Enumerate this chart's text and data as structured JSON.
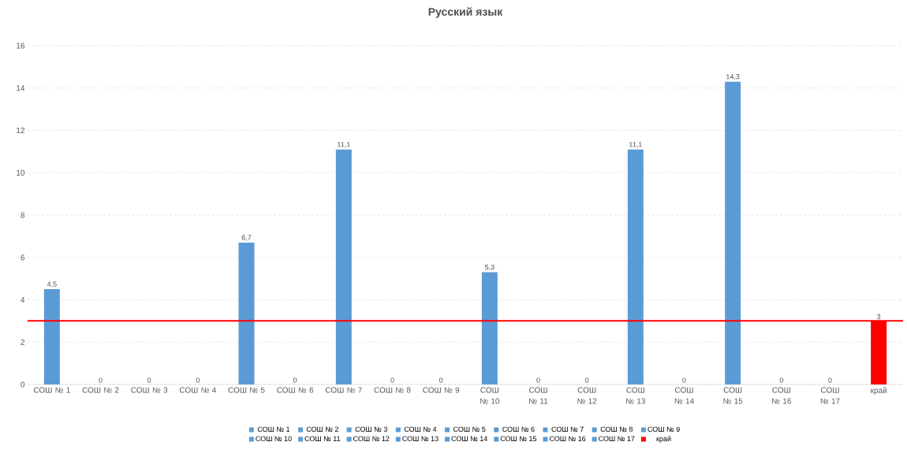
{
  "chart_data": {
    "type": "bar",
    "title": "Русский язык",
    "categories": [
      "СОШ № 1",
      "СОШ № 2",
      "СОШ № 3",
      "СОШ № 4",
      "СОШ № 5",
      "СОШ № 6",
      "СОШ № 7",
      "СОШ № 8",
      "СОШ № 9",
      "СОШ № 10",
      "СОШ № 11",
      "СОШ № 12",
      "СОШ № 13",
      "СОШ № 14",
      "СОШ № 15",
      "СОШ № 16",
      "СОШ № 17",
      "край"
    ],
    "series": [
      {
        "name": "СОШ № 1",
        "color": "#5b9bd5",
        "values": [
          4.5,
          null,
          null,
          null,
          null,
          null,
          null,
          null,
          null,
          null,
          null,
          null,
          null,
          null,
          null,
          null,
          null,
          null
        ],
        "value_labels": [
          "4,5",
          null,
          null,
          null,
          null,
          null,
          null,
          null,
          null,
          null,
          null,
          null,
          null,
          null,
          null,
          null,
          null,
          null
        ]
      },
      {
        "name": "СОШ № 2",
        "color": "#5b9bd5",
        "values": [
          null,
          0,
          null,
          null,
          null,
          null,
          null,
          null,
          null,
          null,
          null,
          null,
          null,
          null,
          null,
          null,
          null,
          null
        ],
        "value_labels": [
          null,
          "0",
          null,
          null,
          null,
          null,
          null,
          null,
          null,
          null,
          null,
          null,
          null,
          null,
          null,
          null,
          null,
          null
        ]
      },
      {
        "name": "СОШ № 3",
        "color": "#5b9bd5",
        "values": [
          null,
          null,
          0,
          null,
          null,
          null,
          null,
          null,
          null,
          null,
          null,
          null,
          null,
          null,
          null,
          null,
          null,
          null
        ],
        "value_labels": [
          null,
          null,
          "0",
          null,
          null,
          null,
          null,
          null,
          null,
          null,
          null,
          null,
          null,
          null,
          null,
          null,
          null,
          null
        ]
      },
      {
        "name": "СОШ № 4",
        "color": "#5b9bd5",
        "values": [
          null,
          null,
          null,
          0,
          null,
          null,
          null,
          null,
          null,
          null,
          null,
          null,
          null,
          null,
          null,
          null,
          null,
          null
        ],
        "value_labels": [
          null,
          null,
          null,
          "0",
          null,
          null,
          null,
          null,
          null,
          null,
          null,
          null,
          null,
          null,
          null,
          null,
          null,
          null
        ]
      },
      {
        "name": "СОШ № 5",
        "color": "#5b9bd5",
        "values": [
          null,
          null,
          null,
          null,
          6.7,
          null,
          null,
          null,
          null,
          null,
          null,
          null,
          null,
          null,
          null,
          null,
          null,
          null
        ],
        "value_labels": [
          null,
          null,
          null,
          null,
          "6,7",
          null,
          null,
          null,
          null,
          null,
          null,
          null,
          null,
          null,
          null,
          null,
          null,
          null
        ]
      },
      {
        "name": "СОШ № 6",
        "color": "#5b9bd5",
        "values": [
          null,
          null,
          null,
          null,
          null,
          0,
          null,
          null,
          null,
          null,
          null,
          null,
          null,
          null,
          null,
          null,
          null,
          null
        ],
        "value_labels": [
          null,
          null,
          null,
          null,
          null,
          "0",
          null,
          null,
          null,
          null,
          null,
          null,
          null,
          null,
          null,
          null,
          null,
          null
        ]
      },
      {
        "name": "СОШ № 7",
        "color": "#5b9bd5",
        "values": [
          null,
          null,
          null,
          null,
          null,
          null,
          11.1,
          null,
          null,
          null,
          null,
          null,
          null,
          null,
          null,
          null,
          null,
          null
        ],
        "value_labels": [
          null,
          null,
          null,
          null,
          null,
          null,
          "11,1",
          null,
          null,
          null,
          null,
          null,
          null,
          null,
          null,
          null,
          null,
          null
        ]
      },
      {
        "name": "СОШ № 8",
        "color": "#5b9bd5",
        "values": [
          null,
          null,
          null,
          null,
          null,
          null,
          null,
          0,
          null,
          null,
          null,
          null,
          null,
          null,
          null,
          null,
          null,
          null
        ],
        "value_labels": [
          null,
          null,
          null,
          null,
          null,
          null,
          null,
          "0",
          null,
          null,
          null,
          null,
          null,
          null,
          null,
          null,
          null,
          null
        ]
      },
      {
        "name": "СОШ № 9",
        "color": "#5b9bd5",
        "values": [
          null,
          null,
          null,
          null,
          null,
          null,
          null,
          null,
          0,
          null,
          null,
          null,
          null,
          null,
          null,
          null,
          null,
          null
        ],
        "value_labels": [
          null,
          null,
          null,
          null,
          null,
          null,
          null,
          null,
          "0",
          null,
          null,
          null,
          null,
          null,
          null,
          null,
          null,
          null
        ]
      },
      {
        "name": "СОШ № 10",
        "color": "#5b9bd5",
        "values": [
          null,
          null,
          null,
          null,
          null,
          null,
          null,
          null,
          null,
          5.3,
          null,
          null,
          null,
          null,
          null,
          null,
          null,
          null
        ],
        "value_labels": [
          null,
          null,
          null,
          null,
          null,
          null,
          null,
          null,
          null,
          "5,3",
          null,
          null,
          null,
          null,
          null,
          null,
          null,
          null
        ]
      },
      {
        "name": "СОШ № 11",
        "color": "#5b9bd5",
        "values": [
          null,
          null,
          null,
          null,
          null,
          null,
          null,
          null,
          null,
          null,
          0,
          null,
          null,
          null,
          null,
          null,
          null,
          null
        ],
        "value_labels": [
          null,
          null,
          null,
          null,
          null,
          null,
          null,
          null,
          null,
          null,
          "0",
          null,
          null,
          null,
          null,
          null,
          null,
          null
        ]
      },
      {
        "name": "СОШ № 12",
        "color": "#5b9bd5",
        "values": [
          null,
          null,
          null,
          null,
          null,
          null,
          null,
          null,
          null,
          null,
          null,
          0,
          null,
          null,
          null,
          null,
          null,
          null
        ],
        "value_labels": [
          null,
          null,
          null,
          null,
          null,
          null,
          null,
          null,
          null,
          null,
          null,
          "0",
          null,
          null,
          null,
          null,
          null,
          null
        ]
      },
      {
        "name": "СОШ № 13",
        "color": "#5b9bd5",
        "values": [
          null,
          null,
          null,
          null,
          null,
          null,
          null,
          null,
          null,
          null,
          null,
          null,
          11.1,
          null,
          null,
          null,
          null,
          null
        ],
        "value_labels": [
          null,
          null,
          null,
          null,
          null,
          null,
          null,
          null,
          null,
          null,
          null,
          null,
          "11,1",
          null,
          null,
          null,
          null,
          null
        ]
      },
      {
        "name": "СОШ № 14",
        "color": "#5b9bd5",
        "values": [
          null,
          null,
          null,
          null,
          null,
          null,
          null,
          null,
          null,
          null,
          null,
          null,
          null,
          0,
          null,
          null,
          null,
          null
        ],
        "value_labels": [
          null,
          null,
          null,
          null,
          null,
          null,
          null,
          null,
          null,
          null,
          null,
          null,
          null,
          "0",
          null,
          null,
          null,
          null
        ]
      },
      {
        "name": "СОШ № 15",
        "color": "#5b9bd5",
        "values": [
          null,
          null,
          null,
          null,
          null,
          null,
          null,
          null,
          null,
          null,
          null,
          null,
          null,
          null,
          14.3,
          null,
          null,
          null
        ],
        "value_labels": [
          null,
          null,
          null,
          null,
          null,
          null,
          null,
          null,
          null,
          null,
          null,
          null,
          null,
          null,
          "14,3",
          null,
          null,
          null
        ]
      },
      {
        "name": "СОШ № 16",
        "color": "#5b9bd5",
        "values": [
          null,
          null,
          null,
          null,
          null,
          null,
          null,
          null,
          null,
          null,
          null,
          null,
          null,
          null,
          null,
          0,
          null,
          null
        ],
        "value_labels": [
          null,
          null,
          null,
          null,
          null,
          null,
          null,
          null,
          null,
          null,
          null,
          null,
          null,
          null,
          null,
          "0",
          null,
          null
        ]
      },
      {
        "name": "СОШ № 17",
        "color": "#5b9bd5",
        "values": [
          null,
          null,
          null,
          null,
          null,
          null,
          null,
          null,
          null,
          null,
          null,
          null,
          null,
          null,
          null,
          null,
          0,
          null
        ],
        "value_labels": [
          null,
          null,
          null,
          null,
          null,
          null,
          null,
          null,
          null,
          null,
          null,
          null,
          null,
          null,
          null,
          null,
          "0",
          null
        ]
      },
      {
        "name": "край",
        "color": "#ff0000",
        "values": [
          null,
          null,
          null,
          null,
          null,
          null,
          null,
          null,
          null,
          null,
          null,
          null,
          null,
          null,
          null,
          null,
          null,
          3
        ],
        "value_labels": [
          null,
          null,
          null,
          null,
          null,
          null,
          null,
          null,
          null,
          null,
          null,
          null,
          null,
          null,
          null,
          null,
          null,
          "3"
        ]
      }
    ],
    "ref_lines": [
      {
        "axis": "y",
        "value": 3,
        "color": "#ff0000"
      }
    ],
    "ylim": [
      0,
      16
    ],
    "yticks": [
      0,
      2,
      4,
      6,
      8,
      10,
      12,
      14,
      16
    ],
    "grid": "y",
    "legend": "bottom"
  }
}
